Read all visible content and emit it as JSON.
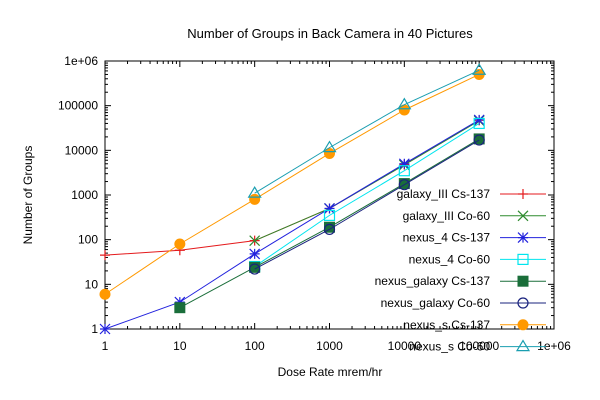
{
  "chart_data": {
    "type": "line",
    "title": "Number of Groups in Back Camera in 40 Pictures",
    "xlabel": "Dose Rate mrem/hr",
    "ylabel": "Number of Groups",
    "xscale": "log",
    "yscale": "log",
    "xlim": [
      1,
      1000000
    ],
    "ylim": [
      1,
      1000000
    ],
    "xticks": [
      {
        "value": 1,
        "label": "1"
      },
      {
        "value": 10,
        "label": "10"
      },
      {
        "value": 100,
        "label": "100"
      },
      {
        "value": 1000,
        "label": "1000"
      },
      {
        "value": 10000,
        "label": "10000"
      },
      {
        "value": 100000,
        "label": "100000"
      },
      {
        "value": 1000000,
        "label": "1e+06"
      }
    ],
    "yticks": [
      {
        "value": 1,
        "label": "1"
      },
      {
        "value": 10,
        "label": "10"
      },
      {
        "value": 100,
        "label": "100"
      },
      {
        "value": 1000,
        "label": "1000"
      },
      {
        "value": 10000,
        "label": "10000"
      },
      {
        "value": 100000,
        "label": "100000"
      },
      {
        "value": 1000000,
        "label": "1e+06"
      }
    ],
    "grid": false,
    "legend_position": "bottom-right",
    "series": [
      {
        "name": "galaxy_III Cs-137",
        "color": "#e41a1c",
        "marker": "plus",
        "x": [
          1,
          10,
          100,
          1000,
          10000,
          100000
        ],
        "y": [
          45,
          58,
          95,
          500,
          4800,
          47000
        ]
      },
      {
        "name": "galaxy_III Co-60",
        "color": "#2e8b2e",
        "marker": "cross",
        "x": [
          100,
          1000,
          10000,
          100000
        ],
        "y": [
          95,
          500,
          4700,
          46000
        ]
      },
      {
        "name": "nexus_4 Cs-137",
        "color": "#2222dd",
        "marker": "star",
        "x": [
          1,
          10,
          100,
          1000,
          10000,
          100000
        ],
        "y": [
          1,
          4,
          48,
          500,
          5000,
          48000
        ]
      },
      {
        "name": "nexus_4 Co-60",
        "color": "#00e5ee",
        "marker": "square-open",
        "x": [
          100,
          1000,
          10000,
          100000
        ],
        "y": [
          25,
          350,
          3500,
          40000
        ]
      },
      {
        "name": "nexus_galaxy Cs-137",
        "color": "#1a6e3a",
        "marker": "square-filled",
        "x": [
          10,
          100,
          1000,
          10000,
          100000
        ],
        "y": [
          3,
          24,
          190,
          1800,
          18000
        ]
      },
      {
        "name": "nexus_galaxy Co-60",
        "color": "#1a237e",
        "marker": "circle-open",
        "x": [
          100,
          1000,
          10000,
          100000
        ],
        "y": [
          22,
          170,
          1700,
          17000
        ]
      },
      {
        "name": "nexus_s Cs-137",
        "color": "#ff9900",
        "marker": "circle-filled",
        "x": [
          1,
          10,
          100,
          1000,
          10000,
          100000
        ],
        "y": [
          6,
          80,
          800,
          8500,
          80000,
          500000
        ]
      },
      {
        "name": "nexus_s Co-60",
        "color": "#1a9eb0",
        "marker": "triangle-open",
        "x": [
          100,
          1000,
          10000,
          100000
        ],
        "y": [
          1100,
          11500,
          105000,
          620000
        ]
      }
    ]
  }
}
